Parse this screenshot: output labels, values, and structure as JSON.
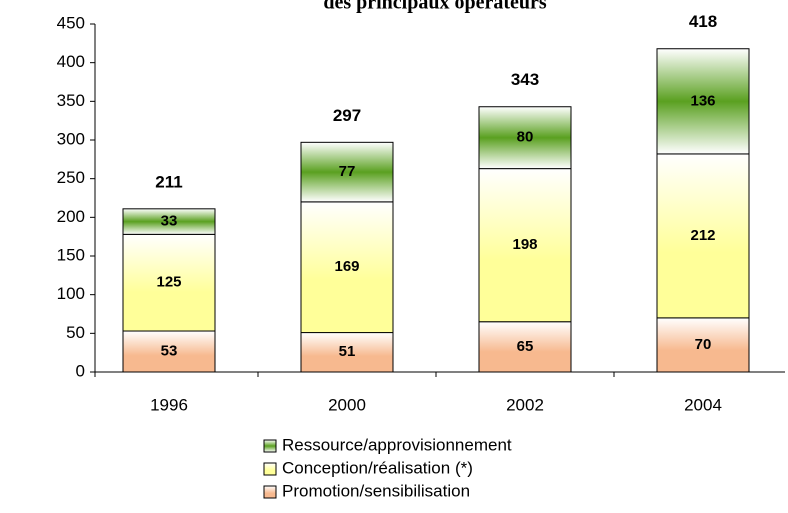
{
  "chart_data": {
    "type": "stacked_bar",
    "title": "des principaux opérateurs",
    "categories": [
      "1996",
      "2000",
      "2002",
      "2004"
    ],
    "series": [
      {
        "name": "Promotion/sensibilisation",
        "color": "#f7b98f",
        "values": [
          53,
          51,
          65,
          70
        ]
      },
      {
        "name": "Conception/réalisation (*)",
        "color": "#ffff99",
        "values": [
          125,
          169,
          198,
          212
        ]
      },
      {
        "name": "Ressource/approvisionnement",
        "color": "#5aa020",
        "values": [
          33,
          77,
          80,
          136
        ]
      }
    ],
    "totals": [
      211,
      297,
      343,
      418
    ],
    "ylim": [
      0,
      450
    ],
    "yticks": [
      0,
      50,
      100,
      150,
      200,
      250,
      300,
      350,
      400,
      450
    ],
    "grid": false
  }
}
